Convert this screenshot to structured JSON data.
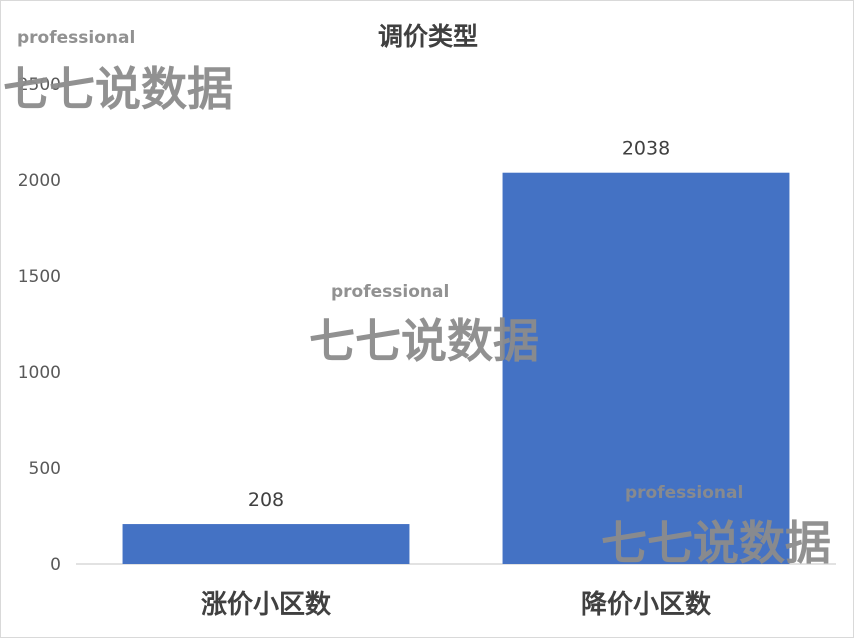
{
  "chart_data": {
    "type": "bar",
    "title": "调价类型",
    "categories": [
      "涨价小区数",
      "降价小区数"
    ],
    "values": [
      208,
      2038
    ],
    "data_labels": [
      "208",
      "2038"
    ],
    "ylim": [
      0,
      2500
    ],
    "yticks": [
      "0",
      "500",
      "1000",
      "1500",
      "2000",
      "2500"
    ],
    "xlabel": "",
    "ylabel": "",
    "grid": false,
    "legend": "none",
    "bar_color": "#4472c4"
  },
  "watermark": {
    "small_text": "professional",
    "big_text": "七七说数据"
  }
}
